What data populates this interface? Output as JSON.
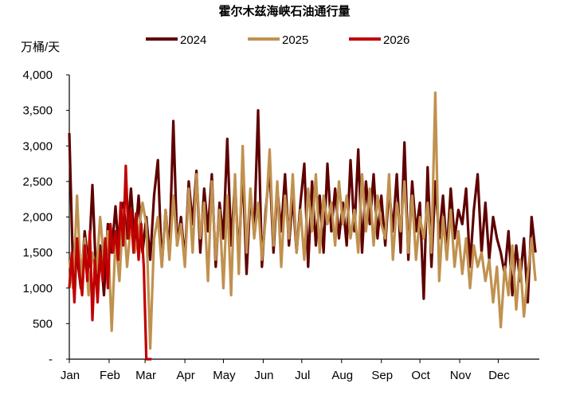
{
  "chart_data": {
    "type": "line",
    "title": "霍尔木兹海峡石油通行量",
    "ylabel": "万桶/天",
    "xlabel": "",
    "ylim": [
      0,
      4000
    ],
    "yticks": [
      {
        "v": 0,
        "label": "-"
      },
      {
        "v": 500,
        "label": "500"
      },
      {
        "v": 1000,
        "label": "1,000"
      },
      {
        "v": 1500,
        "label": "1,500"
      },
      {
        "v": 2000,
        "label": "2,000"
      },
      {
        "v": 2500,
        "label": "2,500"
      },
      {
        "v": 3000,
        "label": "3,000"
      },
      {
        "v": 3500,
        "label": "3,500"
      },
      {
        "v": 4000,
        "label": "4,000"
      }
    ],
    "xlim_days": [
      0,
      366
    ],
    "months": [
      "Jan",
      "Feb",
      "Mar",
      "Apr",
      "May",
      "Jun",
      "Jul",
      "Aug",
      "Sep",
      "Oct",
      "Nov",
      "Dec"
    ],
    "month_start_days": [
      0,
      31,
      59,
      90,
      120,
      151,
      181,
      212,
      243,
      273,
      304,
      334
    ],
    "legend_position": "top-center",
    "series": [
      {
        "name": "2024",
        "color": "#5f0000",
        "step_days": 3,
        "values": [
          3180,
          1200,
          1450,
          1000,
          1800,
          1300,
          2450,
          1100,
          1600,
          900,
          1900,
          1500,
          2150,
          1400,
          2200,
          1700,
          2400,
          1600,
          2300,
          1500,
          2000,
          1400,
          2300,
          2800,
          1300,
          2100,
          1500,
          3350,
          1600,
          2000,
          1400,
          2500,
          1900,
          2650,
          1500,
          2400,
          1800,
          2600,
          1300,
          2200,
          1700,
          3100,
          1600,
          2500,
          1400,
          2700,
          1200,
          2300,
          1800,
          3500,
          1300,
          2100,
          2700,
          1500,
          2400,
          1800,
          2600,
          1600,
          2300,
          1500,
          2200,
          2750,
          1300,
          2500,
          1600,
          2300,
          1500,
          2750,
          1800,
          2400,
          1700,
          2200,
          1600,
          2800,
          1800,
          2950,
          1500,
          2500,
          1900,
          2600,
          1700,
          2300,
          1600,
          2400,
          1800,
          2600,
          1500,
          3050,
          1400,
          2500,
          1800,
          2200,
          850,
          2700,
          1300,
          2500,
          1700,
          2300,
          1500,
          2400,
          1700,
          2100,
          1900,
          2400,
          1300,
          2100,
          2600,
          1500,
          2200,
          1400,
          2000,
          1700,
          1500,
          1200,
          1800,
          900,
          1600,
          1100,
          1700,
          800,
          2000,
          1500
        ]
      },
      {
        "name": "2025",
        "color": "#c0914f",
        "step_days": 3,
        "values": [
          1400,
          1000,
          2300,
          1100,
          1700,
          900,
          1500,
          1200,
          2000,
          1400,
          1800,
          400,
          1700,
          1100,
          2100,
          1300,
          1900,
          1500,
          1800,
          2200,
          1900,
          150,
          1700,
          2000,
          1300,
          2100,
          1400,
          2300,
          1600,
          1900,
          1300,
          2400,
          1500,
          2600,
          1700,
          2200,
          1100,
          2500,
          1400,
          2100,
          1000,
          2300,
          900,
          2600,
          1200,
          3000,
          1500,
          2400,
          1700,
          2200,
          1400,
          2000,
          2950,
          1600,
          2500,
          1300,
          2300,
          1700,
          2600,
          1500,
          2100,
          1400,
          2400,
          1800,
          2600,
          1500,
          2300,
          1900,
          2200,
          1600,
          2500,
          1900,
          2300,
          1700,
          2100,
          1500,
          2600,
          1800,
          2400,
          1600,
          2300,
          1900,
          1700,
          2600,
          1400,
          2200,
          1800,
          2500,
          1500,
          2300,
          1400,
          2000,
          1700,
          2200,
          1500,
          3750,
          1100,
          2000,
          1400,
          2100,
          1300,
          1800,
          1200,
          1700,
          1000,
          1600,
          1300,
          1500,
          1100,
          1400,
          800,
          1300,
          450,
          1300,
          900,
          1600,
          700,
          1400,
          600,
          1200,
          1700,
          1100
        ]
      },
      {
        "name": "2026",
        "color": "#c00000",
        "step_days": 2,
        "values": [
          1000,
          1500,
          800,
          1700,
          1200,
          900,
          1600,
          1100,
          1800,
          550,
          1400,
          800,
          1500,
          1100,
          1700,
          1000,
          1900,
          1500,
          1800,
          1400,
          2200,
          1600,
          2720,
          1700,
          2100,
          1500,
          2050,
          1400,
          1900,
          1300,
          0,
          0,
          0
        ]
      }
    ]
  }
}
